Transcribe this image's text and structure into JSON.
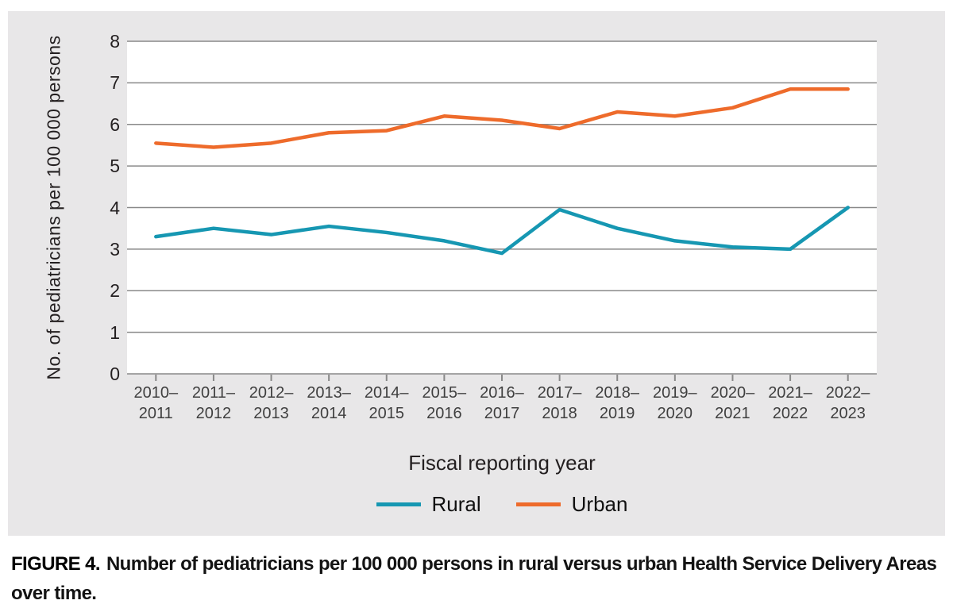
{
  "figure": {
    "caption_label": "FIGURE 4.",
    "caption_text": "Number of pediatricians per 100 000 persons in rural versus urban Health Service Delivery Areas over time."
  },
  "chart_data": {
    "type": "line",
    "title": "",
    "xlabel": "Fiscal reporting year",
    "ylabel": "No. of pediatricians per 100 000 persons",
    "ylim": [
      0,
      8
    ],
    "yticks": [
      0,
      1,
      2,
      3,
      4,
      5,
      6,
      7,
      8
    ],
    "grid": true,
    "legend_position": "bottom",
    "categories": [
      "2010–2011",
      "2011–2012",
      "2012–2013",
      "2013–2014",
      "2014–2015",
      "2015–2016",
      "2016–2017",
      "2017–2018",
      "2018–2019",
      "2019–2020",
      "2020–2021",
      "2021–2022",
      "2022–2023"
    ],
    "series": [
      {
        "name": "Rural",
        "color": "#1697b2",
        "values": [
          3.3,
          3.5,
          3.35,
          3.55,
          3.4,
          3.2,
          2.9,
          3.95,
          3.5,
          3.2,
          3.05,
          3.0,
          4.0
        ]
      },
      {
        "name": "Urban",
        "color": "#ee6b2b",
        "values": [
          5.55,
          5.45,
          5.55,
          5.8,
          5.85,
          6.2,
          6.1,
          5.9,
          6.3,
          6.2,
          6.4,
          6.85,
          6.85
        ]
      }
    ]
  },
  "colors": {
    "panel_bg": "#e8e7e8",
    "plot_bg": "#ffffff",
    "gridline": "#898989",
    "tick_text": "#3f3f3f",
    "axis_text": "#231f20"
  }
}
